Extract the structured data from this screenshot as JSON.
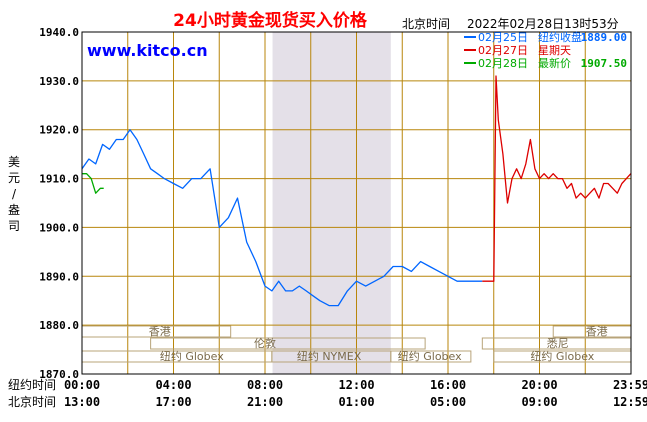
{
  "header": {
    "title": "24小时黄金现货买入价格",
    "timezone_label": "北京时间",
    "timestamp": "2022年02月28日13时53分",
    "watermark": "www.kitco.cn"
  },
  "colors": {
    "frame": "#000000",
    "grid": "#b8860b",
    "title": "#ff0000",
    "watermark": "#0000ff",
    "series_feb25": "#0066ff",
    "series_feb27": "#dd0000",
    "series_feb28": "#00aa00",
    "shade": "#e4e0e8"
  },
  "legend": {
    "items": [
      {
        "date": "02月25日",
        "desc": "纽约收盘",
        "value": "1889.00",
        "color": "#0066ff"
      },
      {
        "date": "02月27日",
        "desc": "星期天",
        "value": "",
        "color": "#dd0000"
      },
      {
        "date": "02月28日",
        "desc": "最新价",
        "value": "1907.50",
        "color": "#00aa00"
      }
    ]
  },
  "markets": {
    "row1": [
      {
        "name": "香港"
      },
      {
        "name": "香港"
      }
    ],
    "row2": [
      {
        "name": "伦敦"
      },
      {
        "name": "悉尼"
      }
    ],
    "row3": [
      {
        "name": "纽约 Globex"
      },
      {
        "name": "纽约 NYMEX"
      },
      {
        "name": "纽约 Globex"
      },
      {
        "name": "纽约 Globex"
      }
    ]
  },
  "chart_data": {
    "type": "line",
    "ylabel": "美元/盎司",
    "ylim": [
      1870,
      1940
    ],
    "yticks": [
      "1940.0",
      "1930.0",
      "1920.0",
      "1910.0",
      "1900.0",
      "1890.0",
      "1880.0",
      "1870.0"
    ],
    "xlim_hours": [
      0,
      24
    ],
    "x_axis_rows": [
      {
        "label": "纽约时间",
        "ticks": [
          "00:00",
          "04:00",
          "08:00",
          "12:00",
          "16:00",
          "20:00",
          "23:59"
        ]
      },
      {
        "label": "北京时间",
        "ticks": [
          "13:00",
          "17:00",
          "21:00",
          "01:00",
          "05:00",
          "09:00",
          "12:59"
        ]
      }
    ],
    "series": [
      {
        "name": "02月25日",
        "color": "#0066ff",
        "x": [
          0,
          0.3,
          0.6,
          0.9,
          1.2,
          1.5,
          1.8,
          2.1,
          2.4,
          2.7,
          3.0,
          3.3,
          3.6,
          4.0,
          4.4,
          4.8,
          5.2,
          5.6,
          6.0,
          6.4,
          6.8,
          7.2,
          7.6,
          8.0,
          8.3,
          8.6,
          8.9,
          9.2,
          9.5,
          9.8,
          10.1,
          10.4,
          10.8,
          11.2,
          11.6,
          12.0,
          12.4,
          12.8,
          13.2,
          13.6,
          14.0,
          14.4,
          14.8,
          15.2,
          15.6,
          16.0,
          16.4,
          16.8,
          17.2,
          17.5
        ],
        "y": [
          1912,
          1914,
          1913,
          1917,
          1916,
          1918,
          1918,
          1920,
          1918,
          1915,
          1912,
          1911,
          1910,
          1909,
          1908,
          1910,
          1910,
          1912,
          1900,
          1902,
          1906,
          1897,
          1893,
          1888,
          1887,
          1889,
          1887,
          1887,
          1888,
          1887,
          1886,
          1885,
          1884,
          1884,
          1887,
          1889,
          1888,
          1889,
          1890,
          1892,
          1892,
          1891,
          1893,
          1892,
          1891,
          1890,
          1889,
          1889,
          1889,
          1889
        ]
      },
      {
        "name": "02月27日",
        "color": "#dd0000",
        "x": [
          17.5,
          17.8,
          18.0,
          18.1,
          18.2,
          18.4,
          18.6,
          18.8,
          19.0,
          19.2,
          19.4,
          19.6,
          19.8,
          20.0,
          20.2,
          20.4,
          20.6,
          20.8,
          21.0,
          21.2,
          21.4,
          21.6,
          21.8,
          22.0,
          22.2,
          22.4,
          22.6,
          22.8,
          23.0,
          23.2,
          23.4,
          23.6,
          23.8,
          23.99
        ],
        "y": [
          1889,
          1889,
          1889,
          1931,
          1922,
          1915,
          1905,
          1910,
          1912,
          1910,
          1913,
          1918,
          1912,
          1910,
          1911,
          1910,
          1911,
          1910,
          1910,
          1908,
          1909,
          1906,
          1907,
          1906,
          1907,
          1908,
          1906,
          1909,
          1909,
          1908,
          1907,
          1909,
          1910,
          1911
        ]
      },
      {
        "name": "02月28日",
        "color": "#00aa00",
        "x": [
          0,
          0.2,
          0.4,
          0.6,
          0.8,
          0.95
        ],
        "y": [
          1911,
          1911,
          1910,
          1907,
          1908,
          1908
        ]
      }
    ]
  }
}
